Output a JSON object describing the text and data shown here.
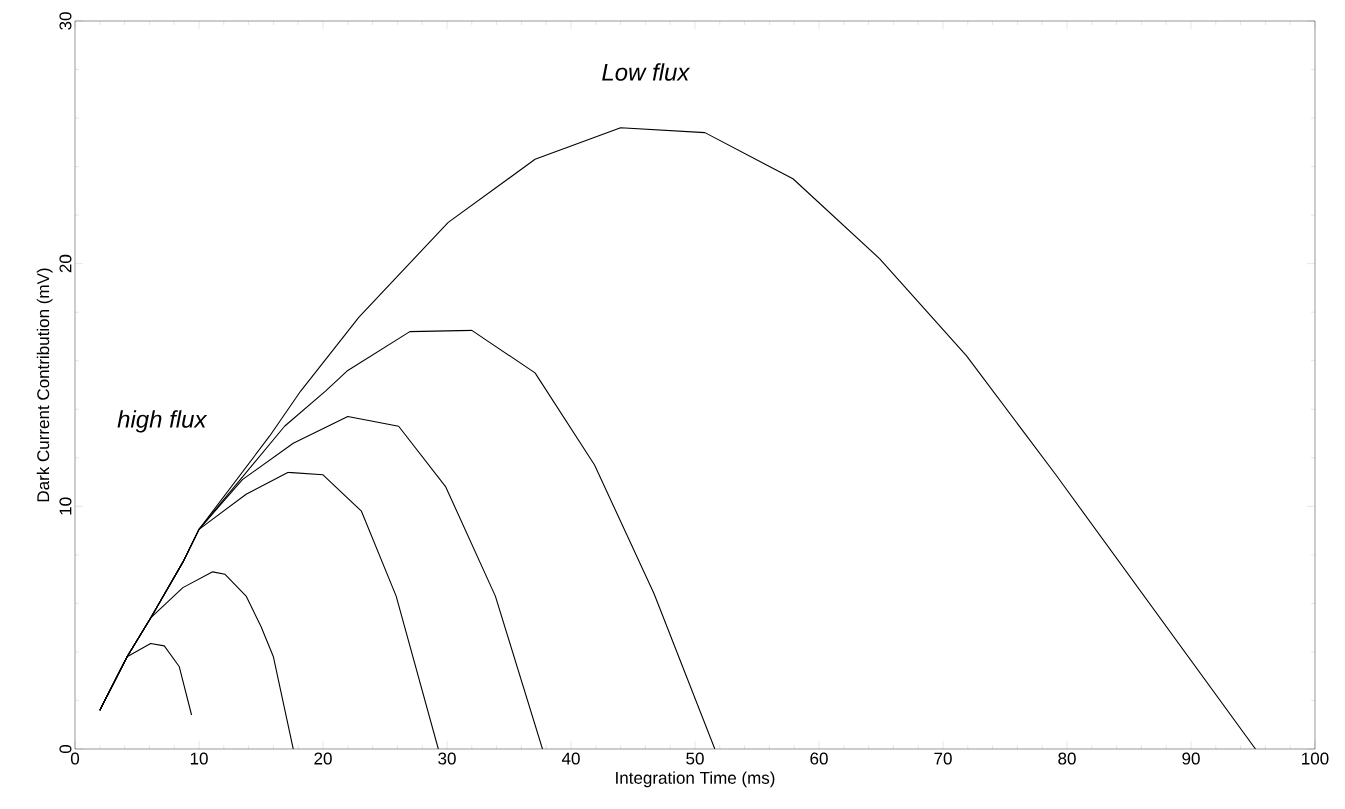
{
  "chart_data": {
    "type": "line",
    "xlabel": "Integration Time (ms)",
    "ylabel": "Dark Current Contribution (mV)",
    "xlim": [
      0,
      100
    ],
    "ylim": [
      0,
      30
    ],
    "xticks": [
      0,
      10,
      20,
      30,
      40,
      50,
      60,
      70,
      80,
      90,
      100
    ],
    "yticks": [
      0,
      10,
      20,
      30
    ],
    "grid": false,
    "marker": "none",
    "line_style": "solid",
    "annotations": [
      "Low flux",
      "high flux"
    ],
    "series": [
      {
        "color": "#000000",
        "x": [
          2,
          4.2,
          6.1,
          7.2,
          8.4,
          9.4
        ],
        "values": [
          1.6,
          3.8,
          4.35,
          4.25,
          3.4,
          1.4
        ]
      },
      {
        "color": "#000000",
        "x": [
          2,
          4.2,
          6.1,
          8.7,
          11.1,
          12.1,
          13.8,
          15,
          16,
          17.6
        ],
        "values": [
          1.6,
          3.8,
          5.4,
          6.65,
          7.3,
          7.2,
          6.3,
          5.05,
          3.8,
          0
        ]
      },
      {
        "color": "#000000",
        "x": [
          2,
          4.2,
          6.1,
          8.7,
          10,
          13.8,
          17.2,
          20,
          23.1,
          25.9,
          29.3
        ],
        "values": [
          1.6,
          3.8,
          5.4,
          7.7,
          9.05,
          10.5,
          11.4,
          11.3,
          9.8,
          6.3,
          0
        ]
      },
      {
        "color": "#000000",
        "x": [
          2,
          4.2,
          6.1,
          8.7,
          10,
          13.5,
          17.6,
          22,
          26.1,
          29.9,
          33.9,
          37.7
        ],
        "values": [
          1.6,
          3.8,
          5.4,
          7.7,
          9.05,
          11.1,
          12.6,
          13.7,
          13.3,
          10.8,
          6.3,
          0
        ]
      },
      {
        "color": "#000000",
        "x": [
          2,
          4.2,
          6.1,
          8.7,
          10,
          16.9,
          20.2,
          22,
          27,
          32,
          37.1,
          41.9,
          46.7,
          51.6
        ],
        "values": [
          1.6,
          3.8,
          5.4,
          7.7,
          9.05,
          13.3,
          14.75,
          15.6,
          17.2,
          17.25,
          15.5,
          11.7,
          6.4,
          0
        ]
      },
      {
        "color": "#000000",
        "x": [
          2,
          4.2,
          6.1,
          8.7,
          10,
          15.7,
          18.2,
          22.9,
          30.1,
          37.1,
          44,
          50.8,
          57.9,
          64.9,
          71.9,
          79.1,
          95.2
        ],
        "values": [
          1.6,
          3.8,
          5.4,
          7.7,
          9.05,
          12.9,
          14.75,
          17.8,
          21.7,
          24.3,
          25.6,
          25.4,
          23.5,
          20.2,
          16.2,
          11.3,
          0
        ]
      }
    ]
  }
}
